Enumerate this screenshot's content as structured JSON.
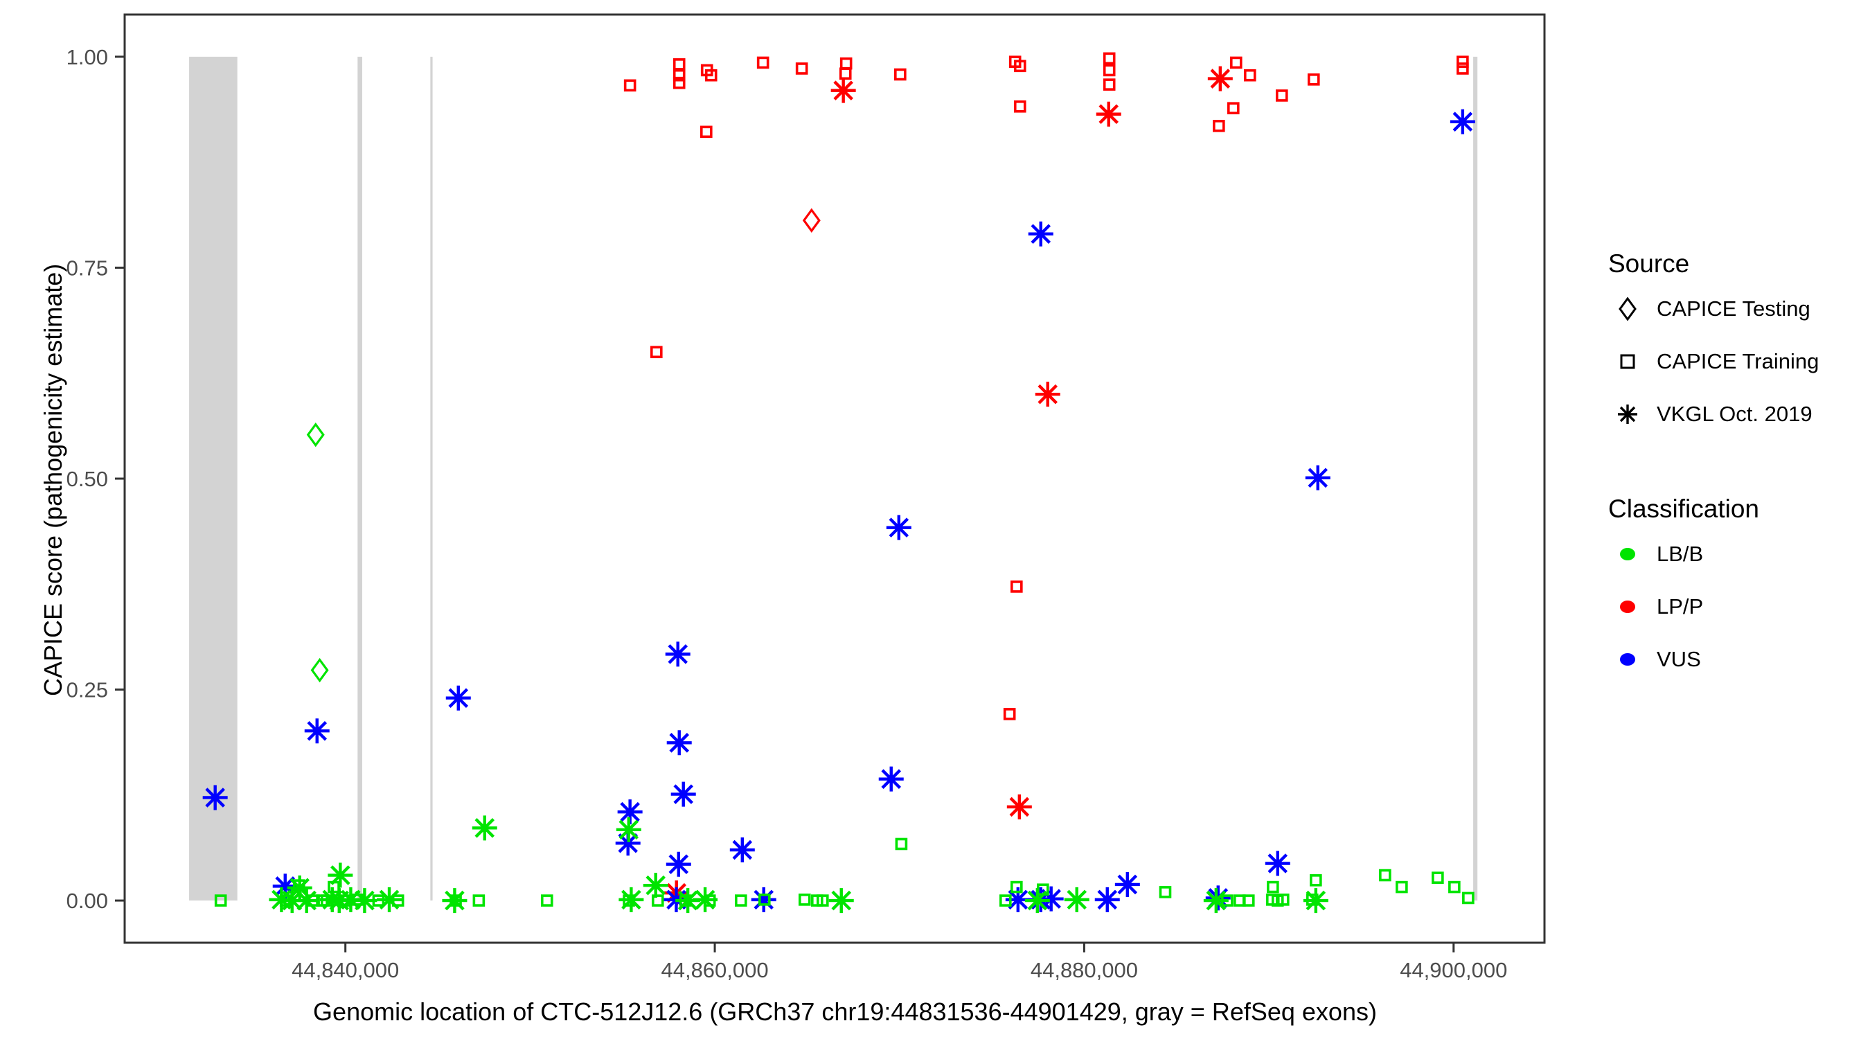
{
  "figure": {
    "y_axis": {
      "label": "CAPICE score (pathogenicity estimate)",
      "ticks": [
        {
          "value": 1.0,
          "label": "1.00"
        },
        {
          "value": 0.75,
          "label": "0.75"
        },
        {
          "value": 0.5,
          "label": "0.50"
        },
        {
          "value": 0.25,
          "label": "0.25"
        },
        {
          "value": 0.0,
          "label": "0.00"
        }
      ]
    },
    "x_axis": {
      "label": "Genomic location of CTC-512J12.6 (GRCh37 chr19:44831536-44901429, gray = RefSeq exons)",
      "ticks": [
        {
          "value": 44840000,
          "label": "44,840,000"
        },
        {
          "value": 44860000,
          "label": "44,860,000"
        },
        {
          "value": 44880000,
          "label": "44,880,000"
        },
        {
          "value": 44900000,
          "label": "44,900,000"
        }
      ]
    },
    "legend": {
      "source": {
        "title": "Source",
        "items": [
          {
            "label": "CAPICE Testing",
            "marker": "diamond"
          },
          {
            "label": "CAPICE Training",
            "marker": "square"
          },
          {
            "label": "VKGL Oct. 2019",
            "marker": "asterisk"
          }
        ]
      },
      "classification": {
        "title": "Classification",
        "items": [
          {
            "label": "LB/B",
            "color": "#00e400"
          },
          {
            "label": "LP/P",
            "color": "#ff0000"
          },
          {
            "label": "VUS",
            "color": "#0000ff"
          }
        ]
      }
    }
  },
  "chart_data": {
    "type": "scatter",
    "xlabel": "Genomic location of CTC-512J12.6 (GRCh37 chr19:44831536-44901429, gray = RefSeq exons)",
    "ylabel": "CAPICE score (pathogenicity estimate)",
    "xlim": [
      44828050,
      44904920
    ],
    "ylim": [
      -0.05,
      1.05
    ],
    "x_ticks": [
      44840000,
      44860000,
      44880000,
      44900000
    ],
    "y_ticks": [
      1.0,
      0.75,
      0.5,
      0.25,
      0.0
    ],
    "grid": false,
    "legend_position": "right",
    "colors": {
      "LB/B": "#00e400",
      "LP/P": "#ff0000",
      "VUS": "#0000ff",
      "exon": "#d3d3d3",
      "border": "#333333",
      "tick_text": "#4d4d4d"
    },
    "markers": {
      "testing": "diamond",
      "training": "square",
      "vkgl": "asterisk"
    },
    "exons_bp": [
      [
        44831540,
        44834150
      ],
      [
        44840660,
        44840910
      ],
      [
        44844600,
        44844720
      ],
      [
        44901060,
        44901290
      ]
    ],
    "point_format": [
      "bp",
      "score",
      "source",
      "classification"
    ],
    "points": [
      [
        44855410,
        0.966,
        "training",
        "LP/P"
      ],
      [
        44858075,
        0.991,
        "training",
        "LP/P"
      ],
      [
        44858075,
        0.978,
        "training",
        "LP/P"
      ],
      [
        44858075,
        0.969,
        "training",
        "LP/P"
      ],
      [
        44859575,
        0.984,
        "training",
        "LP/P"
      ],
      [
        44859800,
        0.978,
        "training",
        "LP/P"
      ],
      [
        44859540,
        0.911,
        "training",
        "LP/P"
      ],
      [
        44862610,
        0.993,
        "training",
        "LP/P"
      ],
      [
        44864710,
        0.986,
        "training",
        "LP/P"
      ],
      [
        44867110,
        0.992,
        "training",
        "LP/P"
      ],
      [
        44867075,
        0.98,
        "training",
        "LP/P"
      ],
      [
        44870040,
        0.979,
        "training",
        "LP/P"
      ],
      [
        44876260,
        0.994,
        "training",
        "LP/P"
      ],
      [
        44876525,
        0.989,
        "training",
        "LP/P"
      ],
      [
        44876525,
        0.941,
        "training",
        "LP/P"
      ],
      [
        44881360,
        0.998,
        "training",
        "LP/P"
      ],
      [
        44881360,
        0.984,
        "training",
        "LP/P"
      ],
      [
        44881360,
        0.967,
        "training",
        "LP/P"
      ],
      [
        44888225,
        0.993,
        "training",
        "LP/P"
      ],
      [
        44888975,
        0.978,
        "training",
        "LP/P"
      ],
      [
        44888075,
        0.939,
        "training",
        "LP/P"
      ],
      [
        44887290,
        0.918,
        "training",
        "LP/P"
      ],
      [
        44890700,
        0.954,
        "training",
        "LP/P"
      ],
      [
        44892425,
        0.973,
        "training",
        "LP/P"
      ],
      [
        44900490,
        0.994,
        "training",
        "LP/P"
      ],
      [
        44900490,
        0.986,
        "training",
        "LP/P"
      ],
      [
        44856840,
        0.65,
        "training",
        "LP/P"
      ],
      [
        44876340,
        0.372,
        "training",
        "LP/P"
      ],
      [
        44875960,
        0.221,
        "training",
        "LP/P"
      ],
      [
        44866960,
        0.96,
        "vkgl",
        "LP/P"
      ],
      [
        44881325,
        0.932,
        "vkgl",
        "LP/P"
      ],
      [
        44887365,
        0.974,
        "vkgl",
        "LP/P"
      ],
      [
        44878025,
        0.6,
        "vkgl",
        "LP/P"
      ],
      [
        44876490,
        0.111,
        "vkgl",
        "LP/P"
      ],
      [
        44857925,
        0.009,
        "vkgl",
        "LP/P"
      ],
      [
        44865240,
        0.806,
        "testing",
        "LP/P"
      ],
      [
        44838390,
        0.552,
        "testing",
        "LB/B"
      ],
      [
        44838610,
        0.273,
        "testing",
        "LB/B"
      ],
      [
        44832950,
        0.122,
        "vkgl",
        "VUS"
      ],
      [
        44838465,
        0.201,
        "vkgl",
        "VUS"
      ],
      [
        44846115,
        0.24,
        "vkgl",
        "VUS"
      ],
      [
        44858000,
        0.292,
        "vkgl",
        "VUS"
      ],
      [
        44858075,
        0.187,
        "vkgl",
        "VUS"
      ],
      [
        44858300,
        0.126,
        "vkgl",
        "VUS"
      ],
      [
        44855410,
        0.105,
        "vkgl",
        "VUS"
      ],
      [
        44855300,
        0.068,
        "vkgl",
        "VUS"
      ],
      [
        44858040,
        0.043,
        "vkgl",
        "VUS"
      ],
      [
        44861490,
        0.06,
        "vkgl",
        "VUS"
      ],
      [
        44869550,
        0.144,
        "vkgl",
        "VUS"
      ],
      [
        44869965,
        0.442,
        "vkgl",
        "VUS"
      ],
      [
        44877650,
        0.79,
        "vkgl",
        "VUS"
      ],
      [
        44892650,
        0.501,
        "vkgl",
        "VUS"
      ],
      [
        44890475,
        0.044,
        "vkgl",
        "VUS"
      ],
      [
        44882340,
        0.019,
        "vkgl",
        "VUS"
      ],
      [
        44900490,
        0.923,
        "vkgl",
        "VUS"
      ],
      [
        44836740,
        0.017,
        "vkgl",
        "VUS"
      ],
      [
        44862650,
        0.001,
        "vkgl",
        "VUS"
      ],
      [
        44876415,
        0.001,
        "vkgl",
        "VUS"
      ],
      [
        44877650,
        0.001,
        "vkgl",
        "VUS"
      ],
      [
        44878210,
        0.002,
        "vkgl",
        "VUS"
      ],
      [
        44881250,
        0.001,
        "vkgl",
        "VUS"
      ],
      [
        44887250,
        0.003,
        "vkgl",
        "VUS"
      ],
      [
        44857915,
        0.001,
        "vkgl",
        "VUS"
      ],
      [
        44855340,
        0.084,
        "vkgl",
        "LB/B"
      ],
      [
        44847540,
        0.086,
        "vkgl",
        "LB/B"
      ],
      [
        44856800,
        0.018,
        "vkgl",
        "LB/B"
      ],
      [
        44837525,
        0.015,
        "vkgl",
        "LB/B"
      ],
      [
        44839725,
        0.03,
        "vkgl",
        "LB/B"
      ],
      [
        44836540,
        0.001,
        "vkgl",
        "LB/B"
      ],
      [
        44837115,
        0.0,
        "vkgl",
        "LB/B"
      ],
      [
        44837900,
        0.0,
        "vkgl",
        "LB/B"
      ],
      [
        44839290,
        0.001,
        "vkgl",
        "LB/B"
      ],
      [
        44839665,
        0.0,
        "vkgl",
        "LB/B"
      ],
      [
        44840290,
        0.001,
        "vkgl",
        "LB/B"
      ],
      [
        44841040,
        0.0,
        "vkgl",
        "LB/B"
      ],
      [
        44842375,
        0.001,
        "vkgl",
        "LB/B"
      ],
      [
        44845915,
        0.0,
        "vkgl",
        "LB/B"
      ],
      [
        44855475,
        0.001,
        "vkgl",
        "LB/B"
      ],
      [
        44858540,
        0.0,
        "vkgl",
        "LB/B"
      ],
      [
        44859475,
        0.001,
        "vkgl",
        "LB/B"
      ],
      [
        44866850,
        0.0,
        "vkgl",
        "LB/B"
      ],
      [
        44877465,
        0.0,
        "vkgl",
        "LB/B"
      ],
      [
        44879600,
        0.001,
        "vkgl",
        "LB/B"
      ],
      [
        44887140,
        0.0,
        "vkgl",
        "LB/B"
      ],
      [
        44892540,
        0.0,
        "vkgl",
        "LB/B"
      ],
      [
        44833250,
        0.0,
        "training",
        "LB/B"
      ],
      [
        44837490,
        0.018,
        "training",
        "LB/B"
      ],
      [
        44836775,
        0.0,
        "training",
        "LB/B"
      ],
      [
        44838290,
        0.0,
        "training",
        "LB/B"
      ],
      [
        44838740,
        0.0,
        "training",
        "LB/B"
      ],
      [
        44838990,
        0.0,
        "training",
        "LB/B"
      ],
      [
        44839375,
        0.016,
        "training",
        "LB/B"
      ],
      [
        44839975,
        0.0,
        "training",
        "LB/B"
      ],
      [
        44840665,
        0.001,
        "training",
        "LB/B"
      ],
      [
        44841790,
        0.0,
        "training",
        "LB/B"
      ],
      [
        44842850,
        0.0,
        "training",
        "LB/B"
      ],
      [
        44845975,
        0.0,
        "training",
        "LB/B"
      ],
      [
        44847225,
        0.0,
        "training",
        "LB/B"
      ],
      [
        44850915,
        0.0,
        "training",
        "LB/B"
      ],
      [
        44855350,
        0.0,
        "training",
        "LB/B"
      ],
      [
        44856915,
        0.0,
        "training",
        "LB/B"
      ],
      [
        44858415,
        0.0,
        "training",
        "LB/B"
      ],
      [
        44859725,
        0.0,
        "training",
        "LB/B"
      ],
      [
        44861415,
        0.0,
        "training",
        "LB/B"
      ],
      [
        44862690,
        0.001,
        "training",
        "LB/B"
      ],
      [
        44864865,
        0.001,
        "training",
        "LB/B"
      ],
      [
        44865540,
        0.0,
        "training",
        "LB/B"
      ],
      [
        44865840,
        0.0,
        "training",
        "LB/B"
      ],
      [
        44870100,
        0.067,
        "training",
        "LB/B"
      ],
      [
        44875740,
        0.0,
        "training",
        "LB/B"
      ],
      [
        44876340,
        0.016,
        "training",
        "LB/B"
      ],
      [
        44877765,
        0.013,
        "training",
        "LB/B"
      ],
      [
        44884390,
        0.01,
        "training",
        "LB/B"
      ],
      [
        44887740,
        0.0,
        "training",
        "LB/B"
      ],
      [
        44888415,
        0.0,
        "training",
        "LB/B"
      ],
      [
        44888900,
        0.0,
        "training",
        "LB/B"
      ],
      [
        44890175,
        0.001,
        "training",
        "LB/B"
      ],
      [
        44890215,
        0.016,
        "training",
        "LB/B"
      ],
      [
        44890475,
        0.0,
        "training",
        "LB/B"
      ],
      [
        44890775,
        0.001,
        "training",
        "LB/B"
      ],
      [
        44892350,
        0.001,
        "training",
        "LB/B"
      ],
      [
        44892540,
        0.024,
        "training",
        "LB/B"
      ],
      [
        44896290,
        0.03,
        "training",
        "LB/B"
      ],
      [
        44897190,
        0.016,
        "training",
        "LB/B"
      ],
      [
        44899140,
        0.027,
        "training",
        "LB/B"
      ],
      [
        44900040,
        0.016,
        "training",
        "LB/B"
      ],
      [
        44900790,
        0.003,
        "training",
        "LB/B"
      ]
    ]
  }
}
